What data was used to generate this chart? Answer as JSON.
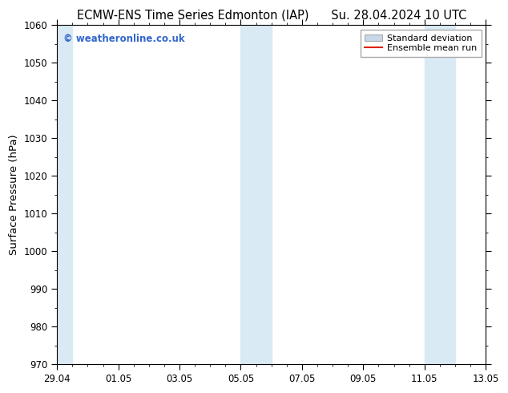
{
  "title_left": "ECMW-ENS Time Series Edmonton (IAP)",
  "title_right": "Su. 28.04.2024 10 UTC",
  "ylabel": "Surface Pressure (hPa)",
  "ylim": [
    970,
    1060
  ],
  "yticks": [
    970,
    980,
    990,
    1000,
    1010,
    1020,
    1030,
    1040,
    1050,
    1060
  ],
  "xtick_labels": [
    "29.04",
    "01.05",
    "03.05",
    "05.05",
    "07.05",
    "09.05",
    "11.05",
    "13.05"
  ],
  "background_color": "#ffffff",
  "plot_bg_color": "#ffffff",
  "shaded_bands": [
    {
      "x_start": 0.0,
      "x_end": 0.5,
      "color": "#daeaf5"
    },
    {
      "x_start": 6.0,
      "x_end": 7.0,
      "color": "#daeaf5"
    },
    {
      "x_start": 12.0,
      "x_end": 13.0,
      "color": "#daeaf5"
    }
  ],
  "watermark_text": "© weatheronline.co.uk",
  "watermark_color": "#3366cc",
  "legend_std_color": "#c8d8e8",
  "legend_std_label": "Standard deviation",
  "legend_mean_color": "#dd2200",
  "legend_mean_label": "Ensemble mean run",
  "title_fontsize": 10.5,
  "tick_fontsize": 8.5,
  "ylabel_fontsize": 9.5,
  "figsize": [
    6.34,
    4.9
  ],
  "dpi": 100,
  "xlim": [
    0,
    14
  ],
  "x_day_positions": [
    0,
    2,
    4,
    6,
    8,
    10,
    12,
    14
  ]
}
